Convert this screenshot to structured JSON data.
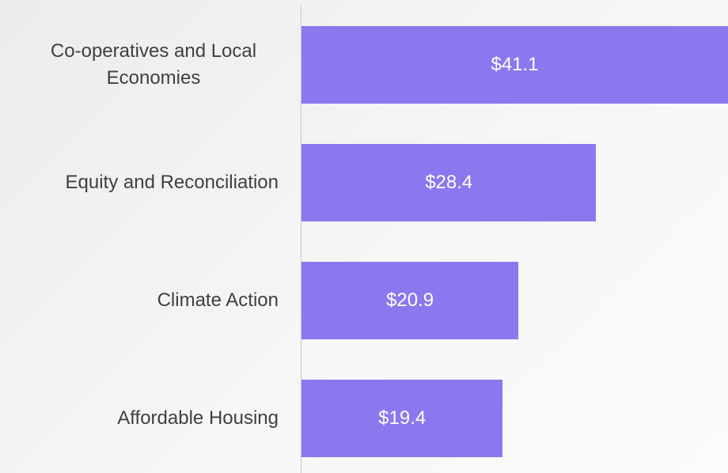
{
  "chart_data": {
    "type": "bar",
    "orientation": "horizontal",
    "categories": [
      "Co-operatives and Local Economies",
      "Equity and Reconciliation",
      "Climate Action",
      "Affordable Housing"
    ],
    "values": [
      41.1,
      28.4,
      20.9,
      19.4
    ],
    "value_labels": [
      "$41.1",
      "$28.4",
      "$20.9",
      "$19.4"
    ],
    "color": "#8b78ee",
    "xlim": [
      0,
      41.1
    ]
  }
}
